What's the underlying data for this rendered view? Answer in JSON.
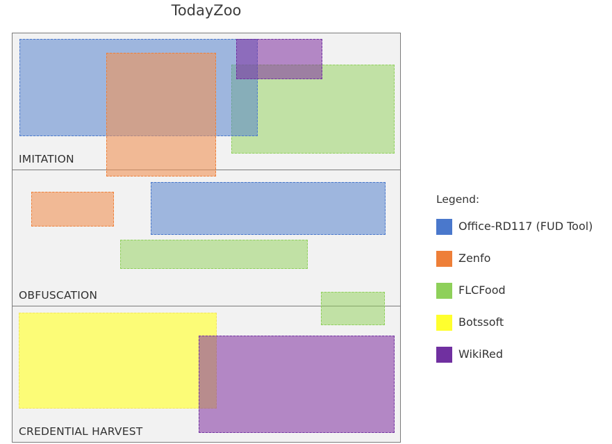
{
  "title": "TodayZoo",
  "bands": [
    {
      "id": "imitation",
      "label": "IMITATION"
    },
    {
      "id": "obfuscation",
      "label": "OBFUSCATION"
    },
    {
      "id": "credential",
      "label": "CREDENTIAL HARVEST"
    }
  ],
  "legend": {
    "title": "Legend:",
    "items": [
      {
        "key": "office",
        "label": "Office-RD117 (FUD Tool)",
        "color": "#4a78cc"
      },
      {
        "key": "zenfo",
        "label": "Zenfo",
        "color": "#ee7f38"
      },
      {
        "key": "flcfood",
        "label": "FLCFood",
        "color": "#8ed05a"
      },
      {
        "key": "botssoft",
        "label": "Botssoft",
        "color": "#ffff2e"
      },
      {
        "key": "wikired",
        "label": "WikiRed",
        "color": "#7030a0"
      }
    ]
  },
  "zone_colors": {
    "office": {
      "fill": "rgba(84,128,204,0.53)",
      "border": "#4a78cc"
    },
    "zenfo": {
      "fill": "rgba(240,146,86,0.60)",
      "border": "#ee7f38"
    },
    "flcfood": {
      "fill": "rgba(144,208,88,0.50)",
      "border": "#8ed05a"
    },
    "botssoft": {
      "fill": "rgba(255,255,78,0.75)",
      "border": "#f4e45a"
    },
    "wikired": {
      "fill": "rgba(128,48,160,0.55)",
      "border": "#7030a0"
    }
  }
}
